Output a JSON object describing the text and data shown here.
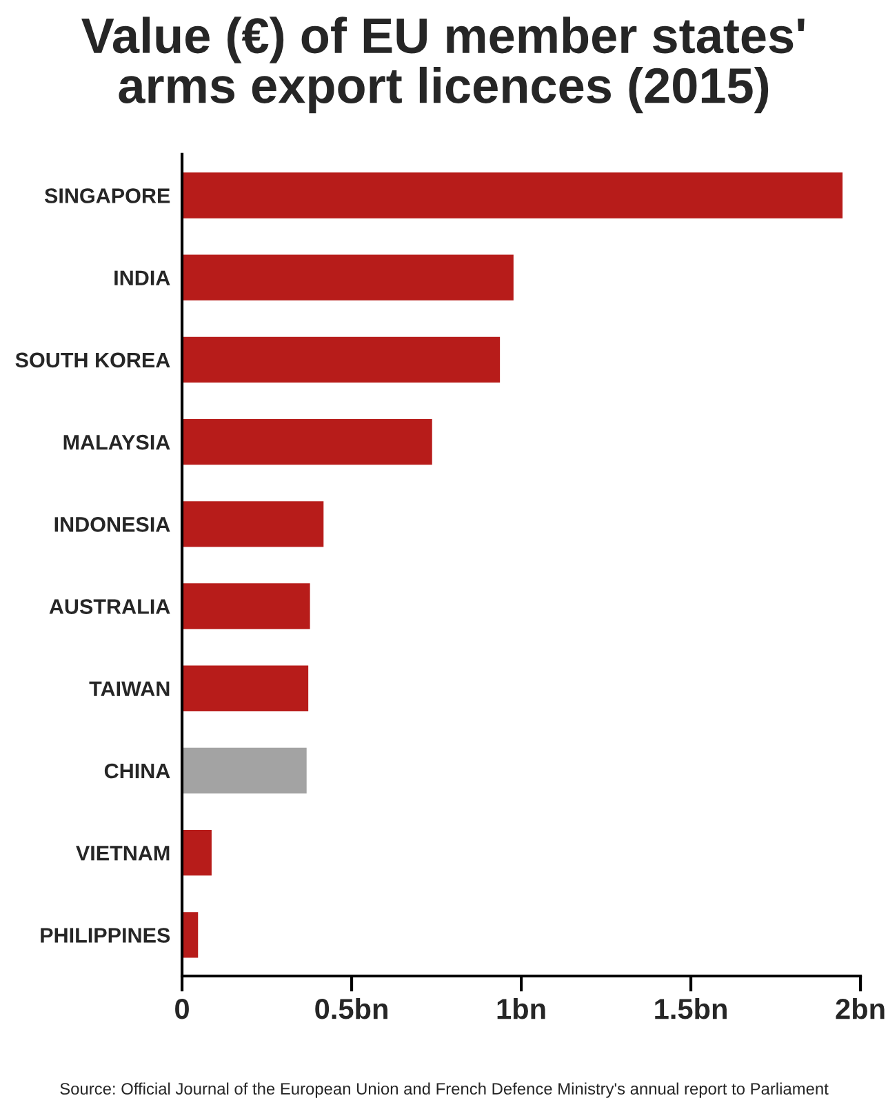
{
  "chart_data": {
    "type": "bar",
    "orientation": "horizontal",
    "title": "Value (€) of EU member states'\narms export licences (2015)",
    "categories": [
      "SINGAPORE",
      "INDIA",
      "SOUTH KOREA",
      "MALAYSIA",
      "INDONESIA",
      "AUSTRALIA",
      "TAIWAN",
      "CHINA",
      "VIETNAM",
      "PHILIPPINES"
    ],
    "values": [
      1.95,
      0.98,
      0.94,
      0.74,
      0.42,
      0.38,
      0.375,
      0.37,
      0.09,
      0.05
    ],
    "colors": [
      "#b71c1a",
      "#b71c1a",
      "#b71c1a",
      "#b71c1a",
      "#b71c1a",
      "#b71c1a",
      "#b71c1a",
      "#a3a3a3",
      "#b71c1a",
      "#b71c1a"
    ],
    "xlim": [
      0,
      2
    ],
    "xticks": [
      0,
      {
        "value": 0.5,
        "label": "0.5bn"
      },
      {
        "value": 1,
        "label": "1bn"
      },
      {
        "value": 1.5,
        "label": "1.5bn"
      },
      {
        "value": 2,
        "label": "2bn"
      }
    ],
    "grid": false,
    "legend": false,
    "annotations": [
      "Source: Official Journal of the European Union and French Defence Ministry's annual report to Parliament"
    ]
  }
}
